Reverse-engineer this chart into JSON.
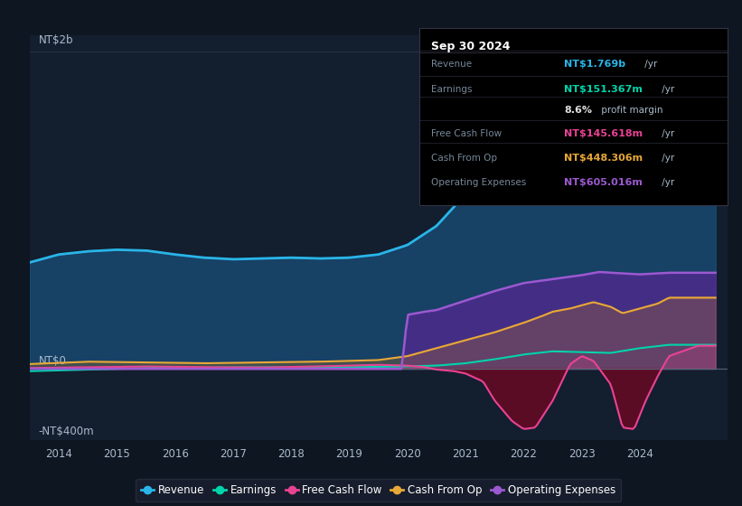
{
  "bg_color": "#0e1621",
  "plot_bg_color": "#0e1621",
  "chart_bg": "#131e2e",
  "ylabel_top": "NT$2b",
  "ylabel_zero": "NT$0",
  "ylabel_bottom": "-NT$400m",
  "x_labels": [
    "2014",
    "2015",
    "2016",
    "2017",
    "2018",
    "2019",
    "2020",
    "2021",
    "2022",
    "2023",
    "2024"
  ],
  "legend": [
    {
      "label": "Revenue",
      "color": "#29b5e8"
    },
    {
      "label": "Earnings",
      "color": "#00d4aa"
    },
    {
      "label": "Free Cash Flow",
      "color": "#e84393"
    },
    {
      "label": "Cash From Op",
      "color": "#e8a838"
    },
    {
      "label": "Operating Expenses",
      "color": "#9b59d0"
    }
  ],
  "info_box": {
    "date": "Sep 30 2024",
    "rows": [
      {
        "label": "Revenue",
        "value": "NT$1.769b",
        "value_color": "#29b5e8",
        "suffix": " /yr"
      },
      {
        "label": "Earnings",
        "value": "NT$151.367m",
        "value_color": "#00d4aa",
        "suffix": " /yr"
      },
      {
        "label": "",
        "value": "8.6%",
        "value_color": "#e0e0e0",
        "suffix": " profit margin"
      },
      {
        "label": "Free Cash Flow",
        "value": "NT$145.618m",
        "value_color": "#e84393",
        "suffix": " /yr"
      },
      {
        "label": "Cash From Op",
        "value": "NT$448.306m",
        "value_color": "#e8a838",
        "suffix": " /yr"
      },
      {
        "label": "Operating Expenses",
        "value": "NT$605.016m",
        "value_color": "#9b59d0",
        "suffix": " /yr"
      }
    ]
  }
}
